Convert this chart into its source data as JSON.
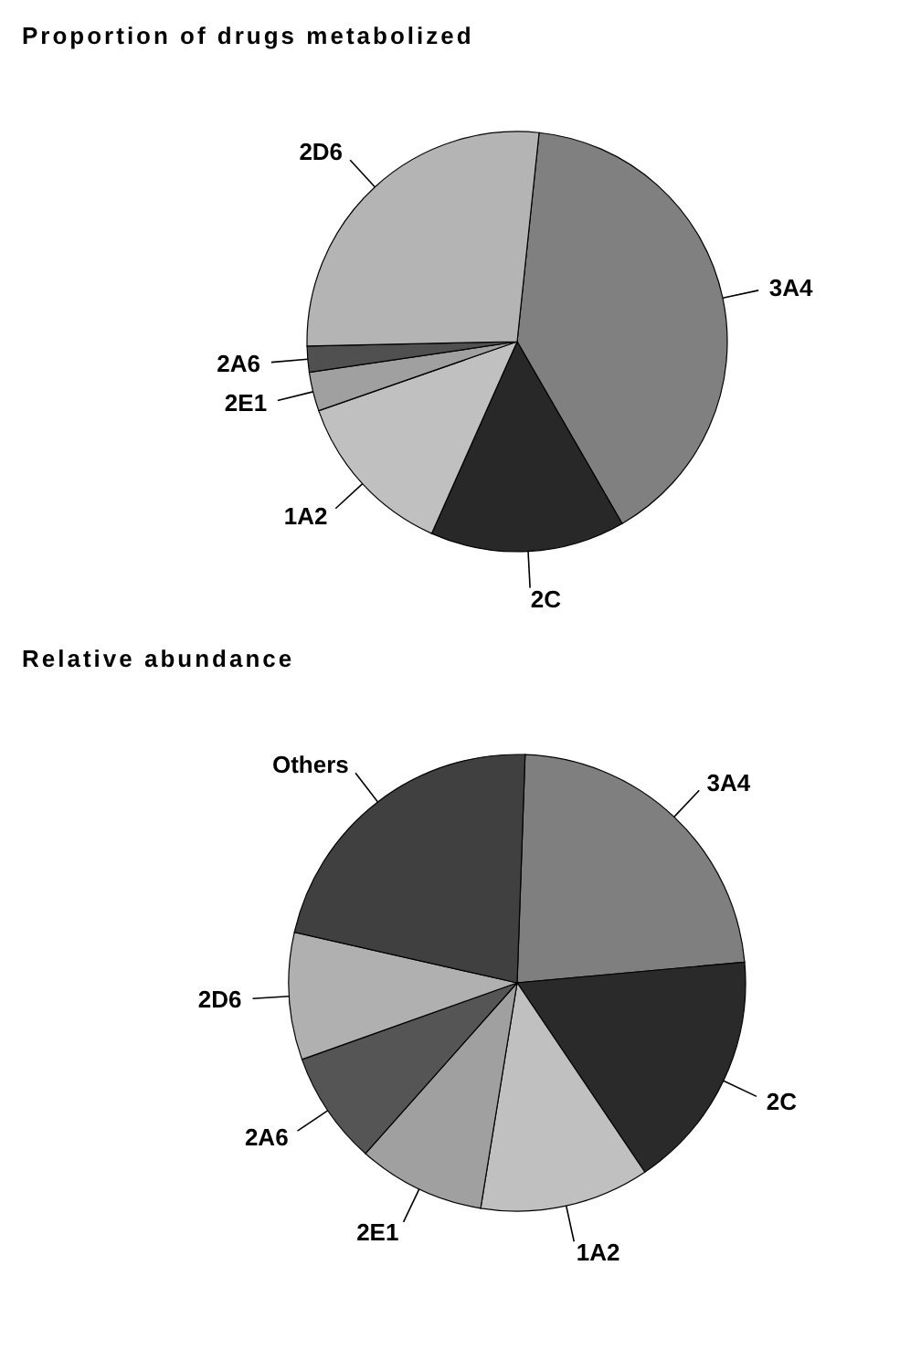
{
  "chart_data": [
    {
      "type": "pie",
      "title": "Proportion of drugs metabolized",
      "categories": [
        "3A4",
        "2C",
        "1A2",
        "2E1",
        "2A6",
        "2D6"
      ],
      "values": [
        40,
        15,
        13,
        3,
        2,
        27
      ],
      "colors": [
        "#808080",
        "#282828",
        "#c0c0c0",
        "#a0a0a0",
        "#505050",
        "#b4b4b4"
      ]
    },
    {
      "type": "pie",
      "title": "Relative abundance",
      "categories": [
        "3A4",
        "2C",
        "1A2",
        "2E1",
        "2A6",
        "2D6",
        "Others"
      ],
      "values": [
        23,
        17,
        12,
        9,
        8,
        9,
        22
      ],
      "colors": [
        "#7f7f7f",
        "#2a2a2a",
        "#c0c0c0",
        "#a0a0a0",
        "#555555",
        "#b0b0b0",
        "#404040"
      ]
    }
  ]
}
